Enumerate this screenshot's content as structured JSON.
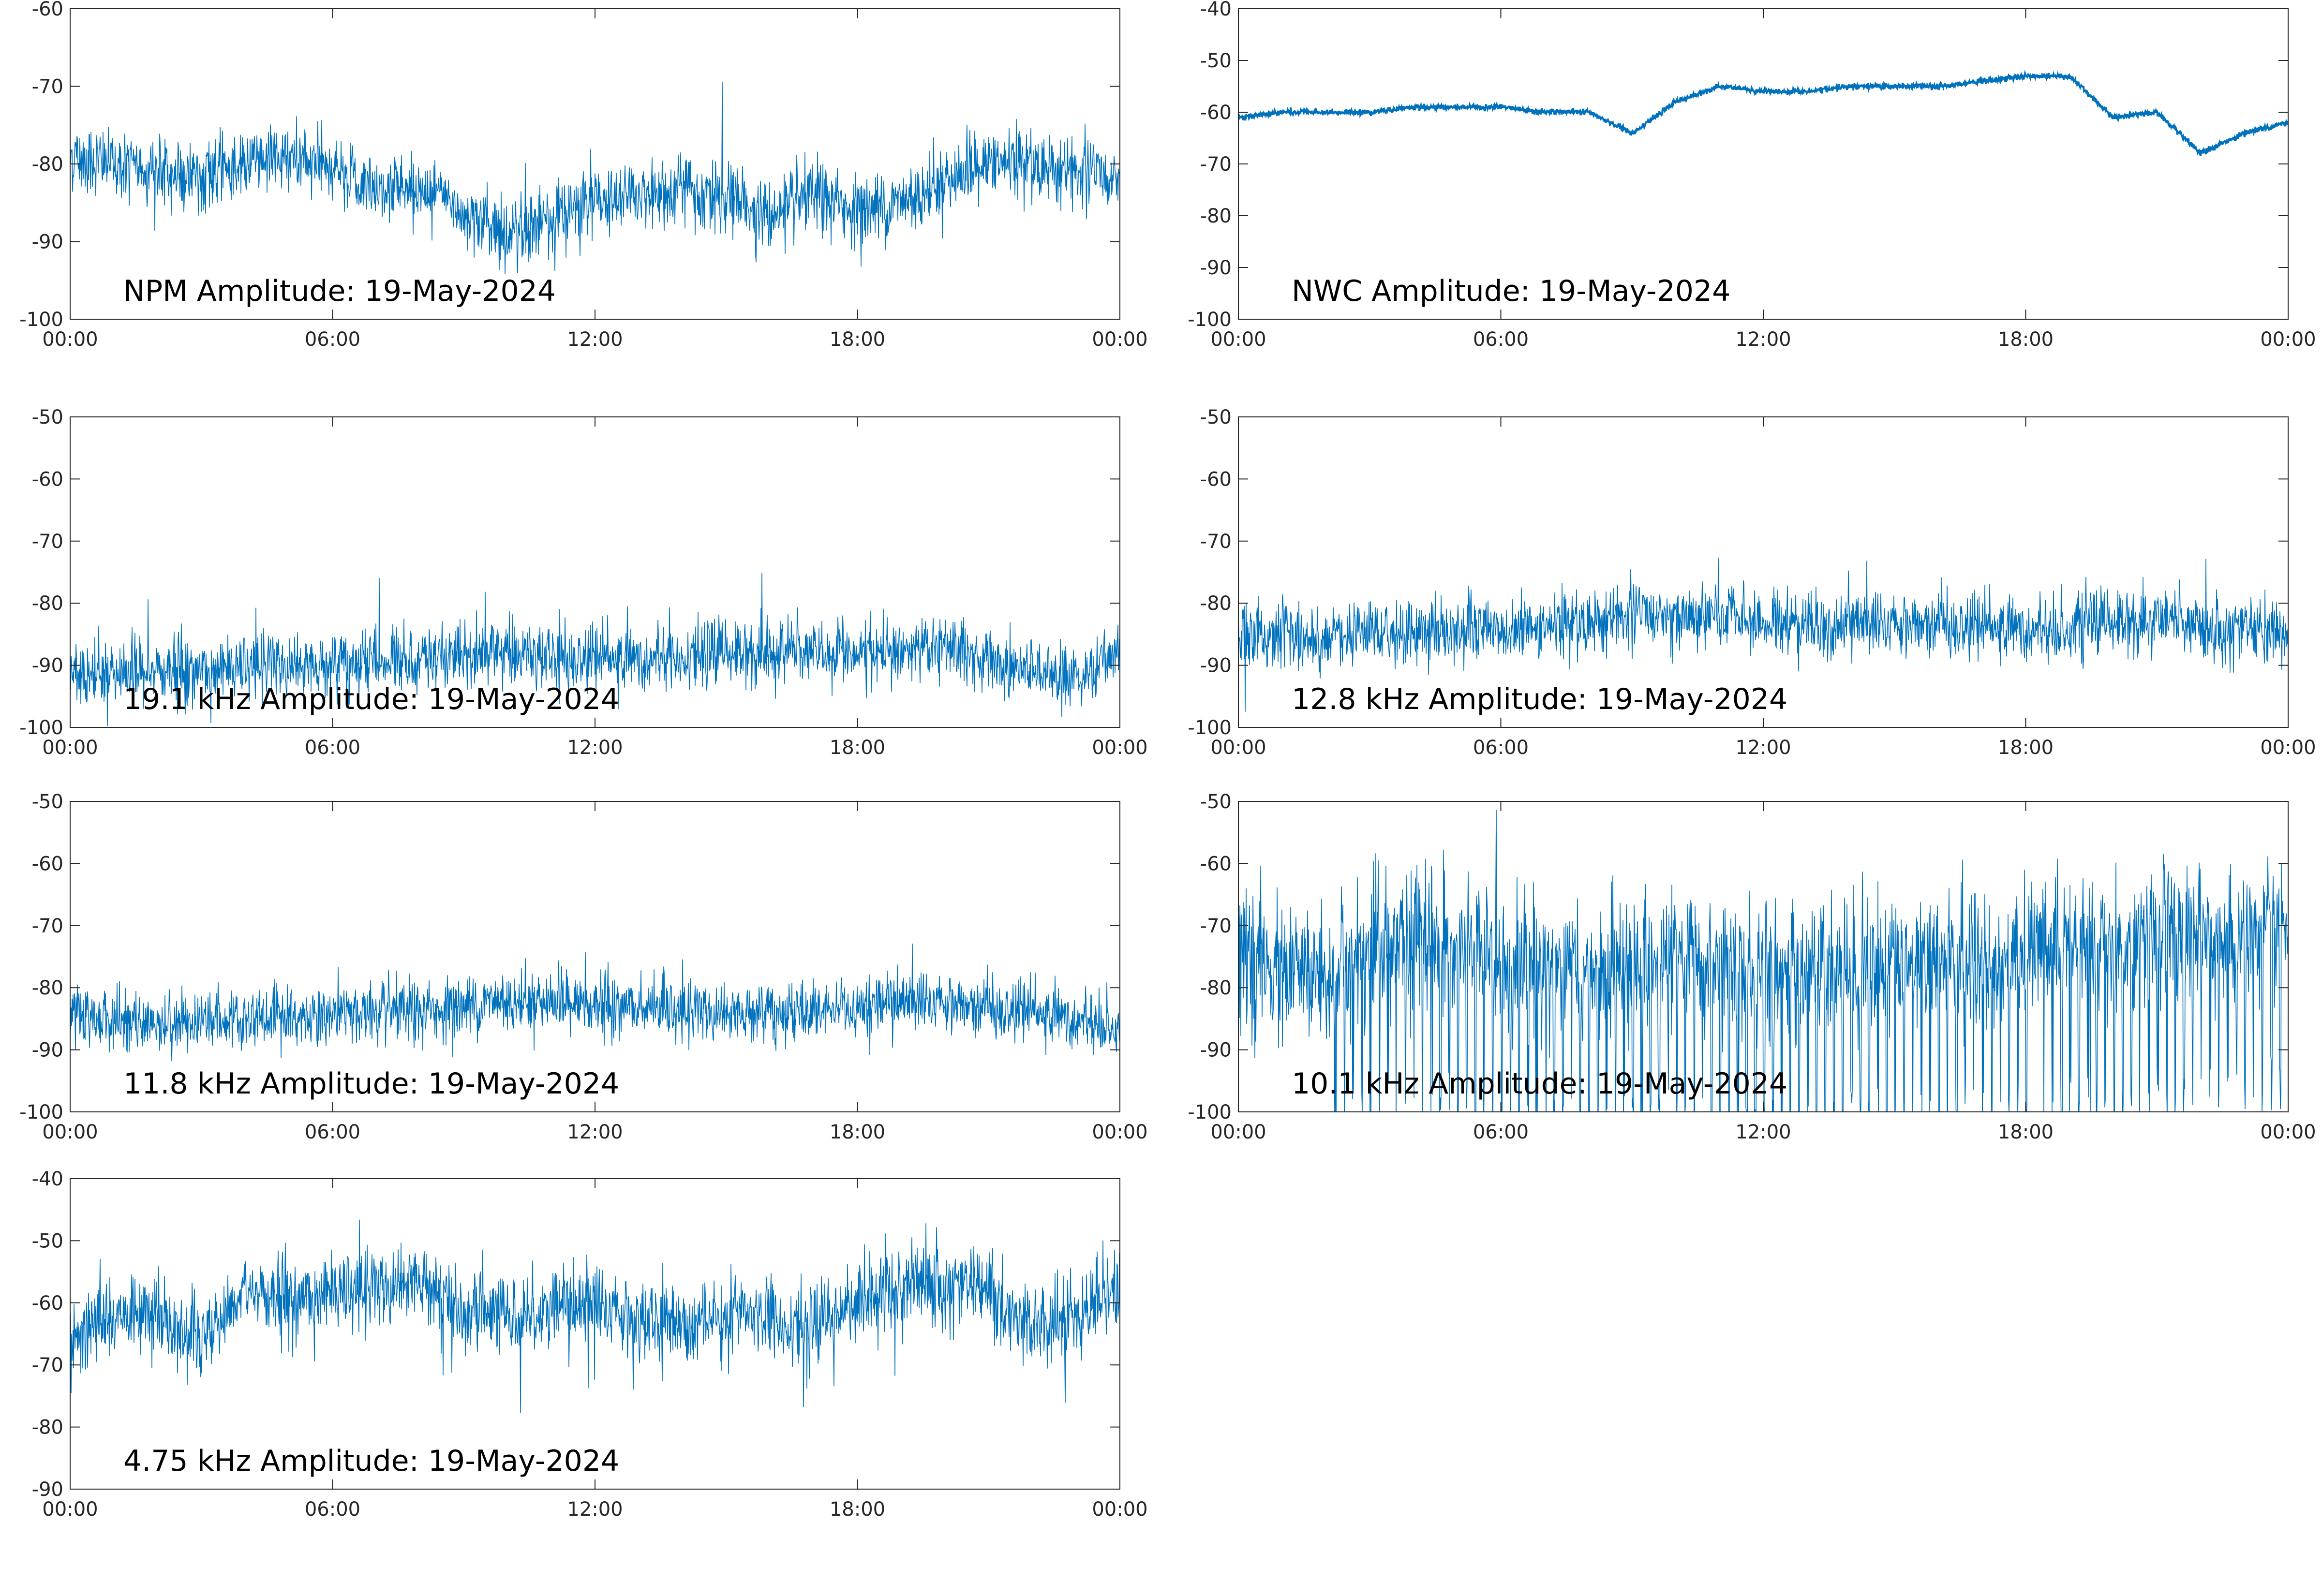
{
  "colors": {
    "series": "#0072BD",
    "axes": "#262626",
    "background": "#ffffff"
  },
  "chart_data": [
    {
      "type": "line",
      "title": "NPM Amplitude: 19-May-2024",
      "xlabel": "",
      "ylabel": "",
      "ylim": [
        -100,
        -60
      ],
      "yticks": [
        "-60",
        "-70",
        "-80",
        "-90",
        "-100"
      ],
      "xticks": [
        "00:00",
        "06:00",
        "12:00",
        "18:00",
        "00:00"
      ],
      "grid": false,
      "series": [
        {
          "x": [
            "00:00",
            "01:00",
            "02:00",
            "03:00",
            "04:00",
            "05:00",
            "06:00",
            "07:00",
            "08:00",
            "09:00",
            "10:00",
            "11:00",
            "12:00",
            "13:00",
            "14:00",
            "15:00",
            "16:00",
            "17:00",
            "18:00",
            "19:00",
            "20:00",
            "21:00",
            "22:00",
            "23:00",
            "24:00"
          ],
          "values": [
            -79,
            -80,
            -81,
            -82,
            -80,
            -79,
            -81,
            -83,
            -83,
            -86,
            -89,
            -87,
            -85,
            -84,
            -83,
            -84,
            -87,
            -84,
            -86,
            -85,
            -82,
            -80,
            -80,
            -81,
            -82
          ]
        }
      ]
    },
    {
      "type": "line",
      "title": "NWC Amplitude: 19-May-2024",
      "xlabel": "",
      "ylabel": "",
      "ylim": [
        -100,
        -40
      ],
      "yticks": [
        "-40",
        "-50",
        "-60",
        "-70",
        "-80",
        "-90",
        "-100"
      ],
      "xticks": [
        "00:00",
        "06:00",
        "12:00",
        "18:00",
        "00:00"
      ],
      "grid": false,
      "series": [
        {
          "x": [
            "00:00",
            "01:00",
            "02:00",
            "03:00",
            "04:00",
            "05:00",
            "06:00",
            "07:00",
            "08:00",
            "09:00",
            "10:00",
            "11:00",
            "12:00",
            "13:00",
            "14:00",
            "15:00",
            "16:00",
            "17:00",
            "18:00",
            "19:00",
            "20:00",
            "21:00",
            "22:00",
            "23:00",
            "24:00"
          ],
          "values": [
            -61,
            -60,
            -60,
            -60,
            -59,
            -59,
            -59,
            -60,
            -60,
            -64,
            -58,
            -55,
            -56,
            -56,
            -55,
            -55,
            -55,
            -54,
            -53,
            -53,
            -61,
            -60,
            -68,
            -64,
            -62
          ]
        }
      ]
    },
    {
      "type": "line",
      "title": "19.1 kHz Amplitude: 19-May-2024",
      "xlabel": "",
      "ylabel": "",
      "ylim": [
        -100,
        -50
      ],
      "yticks": [
        "-50",
        "-60",
        "-70",
        "-80",
        "-90",
        "-100"
      ],
      "xticks": [
        "00:00",
        "06:00",
        "12:00",
        "18:00",
        "00:00"
      ],
      "grid": false,
      "series": [
        {
          "x": [
            "00:00",
            "01:00",
            "02:00",
            "03:00",
            "04:00",
            "05:00",
            "06:00",
            "07:00",
            "08:00",
            "09:00",
            "10:00",
            "11:00",
            "12:00",
            "13:00",
            "14:00",
            "15:00",
            "16:00",
            "17:00",
            "18:00",
            "19:00",
            "20:00",
            "21:00",
            "22:00",
            "23:00",
            "24:00"
          ],
          "values": [
            -91,
            -91,
            -91,
            -91,
            -90,
            -90,
            -90,
            -89,
            -89,
            -88,
            -88,
            -88,
            -89,
            -89,
            -88,
            -88,
            -88,
            -88,
            -88,
            -88,
            -87,
            -89,
            -91,
            -92,
            -88
          ]
        }
      ]
    },
    {
      "type": "line",
      "title": "12.8 kHz Amplitude: 19-May-2024",
      "xlabel": "",
      "ylabel": "",
      "ylim": [
        -100,
        -50
      ],
      "yticks": [
        "-50",
        "-60",
        "-70",
        "-80",
        "-90",
        "-100"
      ],
      "xticks": [
        "00:00",
        "06:00",
        "12:00",
        "18:00",
        "00:00"
      ],
      "grid": false,
      "series": [
        {
          "x": [
            "00:00",
            "01:00",
            "02:00",
            "03:00",
            "04:00",
            "05:00",
            "06:00",
            "07:00",
            "08:00",
            "09:00",
            "10:00",
            "11:00",
            "12:00",
            "13:00",
            "14:00",
            "15:00",
            "16:00",
            "17:00",
            "18:00",
            "19:00",
            "20:00",
            "21:00",
            "22:00",
            "23:00",
            "24:00"
          ],
          "values": [
            -85,
            -85,
            -86,
            -85,
            -85,
            -84,
            -84,
            -84,
            -83,
            -82,
            -82,
            -82,
            -83,
            -83,
            -83,
            -83,
            -83,
            -84,
            -84,
            -84,
            -83,
            -83,
            -84,
            -84,
            -85
          ]
        }
      ]
    },
    {
      "type": "line",
      "title": "11.8 kHz Amplitude: 19-May-2024",
      "xlabel": "",
      "ylabel": "",
      "ylim": [
        -100,
        -50
      ],
      "yticks": [
        "-50",
        "-60",
        "-70",
        "-80",
        "-90",
        "-100"
      ],
      "xticks": [
        "00:00",
        "06:00",
        "12:00",
        "18:00",
        "00:00"
      ],
      "grid": false,
      "series": [
        {
          "x": [
            "00:00",
            "01:00",
            "02:00",
            "03:00",
            "04:00",
            "05:00",
            "06:00",
            "07:00",
            "08:00",
            "09:00",
            "10:00",
            "11:00",
            "12:00",
            "13:00",
            "14:00",
            "15:00",
            "16:00",
            "17:00",
            "18:00",
            "19:00",
            "20:00",
            "21:00",
            "22:00",
            "23:00",
            "24:00"
          ],
          "values": [
            -85,
            -85,
            -86,
            -85,
            -85,
            -85,
            -84,
            -84,
            -84,
            -83,
            -82,
            -82,
            -83,
            -83,
            -84,
            -84,
            -84,
            -84,
            -84,
            -82,
            -82,
            -83,
            -84,
            -85,
            -86
          ]
        }
      ]
    },
    {
      "type": "line",
      "title": "10.1 kHz Amplitude: 19-May-2024",
      "xlabel": "",
      "ylabel": "",
      "ylim": [
        -100,
        -50
      ],
      "yticks": [
        "-50",
        "-60",
        "-70",
        "-80",
        "-90",
        "-100"
      ],
      "xticks": [
        "00:00",
        "06:00",
        "12:00",
        "18:00",
        "00:00"
      ],
      "grid": false,
      "series": [
        {
          "x": [
            "00:00",
            "01:00",
            "02:00",
            "03:00",
            "04:00",
            "05:00",
            "06:00",
            "07:00",
            "08:00",
            "09:00",
            "10:00",
            "11:00",
            "12:00",
            "13:00",
            "14:00",
            "15:00",
            "16:00",
            "17:00",
            "18:00",
            "19:00",
            "20:00",
            "21:00",
            "22:00",
            "23:00",
            "24:00"
          ],
          "values": [
            -76,
            -78,
            -78,
            -74,
            -72,
            -74,
            -75,
            -76,
            -77,
            -77,
            -76,
            -77,
            -78,
            -77,
            -76,
            -76,
            -76,
            -75,
            -74,
            -74,
            -73,
            -72,
            -72,
            -71,
            -70
          ]
        }
      ]
    },
    {
      "type": "line",
      "title": "4.75 kHz Amplitude: 19-May-2024",
      "xlabel": "",
      "ylabel": "",
      "ylim": [
        -90,
        -40
      ],
      "yticks": [
        "-40",
        "-50",
        "-60",
        "-70",
        "-80",
        "-90"
      ],
      "xticks": [
        "00:00",
        "06:00",
        "12:00",
        "18:00",
        "00:00"
      ],
      "grid": false,
      "series": [
        {
          "x": [
            "00:00",
            "01:00",
            "02:00",
            "03:00",
            "04:00",
            "05:00",
            "06:00",
            "07:00",
            "08:00",
            "09:00",
            "10:00",
            "11:00",
            "12:00",
            "13:00",
            "14:00",
            "15:00",
            "16:00",
            "17:00",
            "18:00",
            "19:00",
            "20:00",
            "21:00",
            "22:00",
            "23:00",
            "24:00"
          ],
          "values": [
            -65,
            -62,
            -62,
            -66,
            -58,
            -60,
            -58,
            -58,
            -56,
            -62,
            -62,
            -61,
            -60,
            -62,
            -63,
            -62,
            -62,
            -64,
            -60,
            -57,
            -57,
            -58,
            -64,
            -62,
            -57
          ]
        }
      ]
    }
  ]
}
